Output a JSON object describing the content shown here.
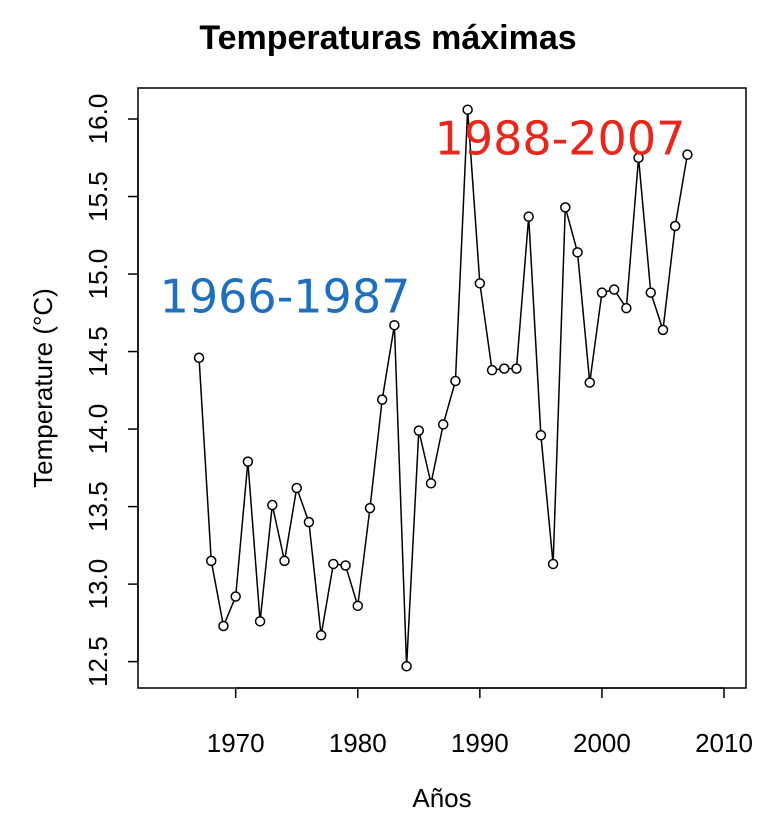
{
  "chart_data": {
    "type": "line",
    "title": "Temperaturas máximas",
    "xlabel": "Años",
    "ylabel": "Temperature (°C)",
    "x": [
      1967,
      1968,
      1969,
      1970,
      1971,
      1972,
      1973,
      1974,
      1975,
      1976,
      1977,
      1978,
      1979,
      1980,
      1981,
      1982,
      1983,
      1984,
      1985,
      1986,
      1987,
      1988,
      1989,
      1990,
      1991,
      1992,
      1993,
      1994,
      1995,
      1996,
      1997,
      1998,
      1999,
      2000,
      2001,
      2002,
      2003,
      2004,
      2005,
      2006,
      2007
    ],
    "series": [
      {
        "name": "Temperature",
        "color": "#000000",
        "values": [
          14.46,
          13.15,
          12.73,
          12.92,
          13.79,
          12.76,
          13.51,
          13.15,
          13.62,
          13.4,
          12.67,
          13.13,
          13.12,
          12.86,
          13.49,
          14.19,
          14.67,
          12.47,
          13.99,
          13.65,
          14.03,
          14.31,
          16.06,
          14.94,
          14.38,
          14.39,
          14.39,
          15.37,
          13.96,
          13.13,
          15.43,
          15.14,
          14.3,
          14.88,
          14.9,
          14.78,
          15.75,
          14.88,
          14.64,
          15.31,
          15.77
        ]
      }
    ],
    "xlim": [
      1962,
      2011.8
    ],
    "xticks": [
      1970,
      1980,
      1990,
      2000,
      2010
    ],
    "ylim": [
      12.33,
      16.2
    ],
    "yticks": [
      {
        "value": 12.5,
        "label": "12.5"
      },
      {
        "value": 13,
        "label": "13.0"
      },
      {
        "value": 13.5,
        "label": "13.5"
      },
      {
        "value": 14,
        "label": "14.0"
      },
      {
        "value": 14.5,
        "label": "14.5"
      },
      {
        "value": 15,
        "label": "15.0"
      },
      {
        "value": 15.5,
        "label": "15.5"
      },
      {
        "value": 16,
        "label": "16.0"
      }
    ],
    "annotations": [
      {
        "text": "1966-1987",
        "color": "#1f6fbf"
      },
      {
        "text": "1988-2007",
        "color": "#e8261c"
      }
    ]
  }
}
